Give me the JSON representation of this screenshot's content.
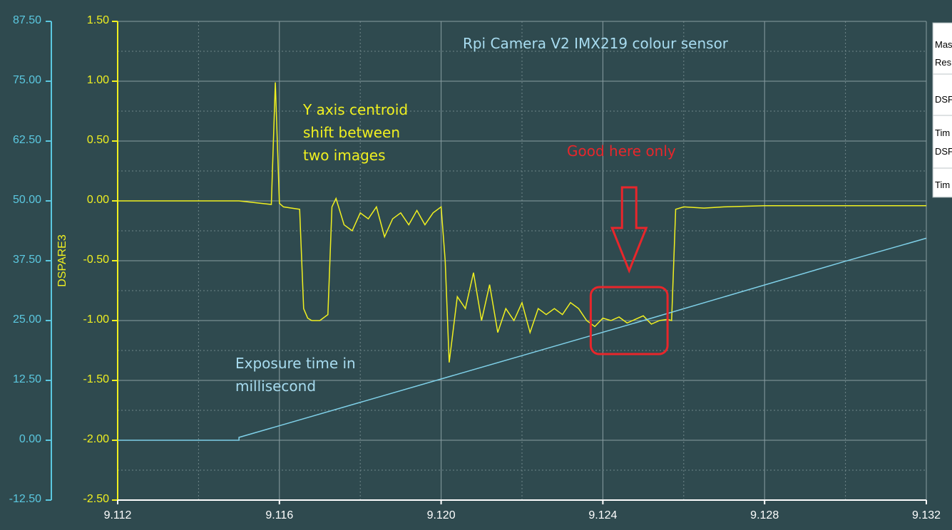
{
  "chart_data": {
    "type": "line",
    "title": "Rpi Camera V2 IMX219 colour sensor",
    "xlabel": "",
    "x_ticks": [
      "9.112",
      "9.116",
      "9.120",
      "9.124",
      "9.128",
      "9.132"
    ],
    "xlim": [
      9.112,
      9.132
    ],
    "y_left_outer": {
      "ticks": [
        "87.50",
        "75.00",
        "62.50",
        "50.00",
        "37.50",
        "25.00",
        "12.50",
        "0.00",
        "-12.50"
      ],
      "ylim": [
        -12.5,
        87.5
      ],
      "color": "#5bc8e0"
    },
    "y_left_inner": {
      "label": "DSPARE3",
      "ticks": [
        "1.50",
        "1.00",
        "0.50",
        "0.00",
        "-0.50",
        "-1.00",
        "-1.50",
        "-2.00",
        "-2.50"
      ],
      "ylim": [
        -2.5,
        1.5
      ],
      "color": "#f0f020"
    },
    "grid": true,
    "legend_position": "top-right",
    "legend_rows": [
      "Mas",
      "Res",
      "DSF",
      "Tim",
      "DSF",
      "Tim"
    ],
    "series": [
      {
        "axis": "y_left_inner",
        "color": "#f0f020",
        "x": [
          9.112,
          9.115,
          9.1158,
          9.1159,
          9.116,
          9.1161,
          9.1163,
          9.1165,
          9.1166,
          9.1167,
          9.1168,
          9.117,
          9.1172,
          9.1173,
          9.1174,
          9.1176,
          9.1178,
          9.118,
          9.1182,
          9.1184,
          9.1186,
          9.1188,
          9.119,
          9.1192,
          9.1194,
          9.1196,
          9.1198,
          9.12,
          9.1201,
          9.1202,
          9.1204,
          9.1206,
          9.1208,
          9.121,
          9.1212,
          9.1214,
          9.1216,
          9.1218,
          9.122,
          9.1222,
          9.1224,
          9.1226,
          9.1228,
          9.123,
          9.1232,
          9.1234,
          9.1236,
          9.1238,
          9.124,
          9.1242,
          9.1244,
          9.1246,
          9.1248,
          9.125,
          9.1252,
          9.1254,
          9.1256,
          9.1257,
          9.1258,
          9.126,
          9.1265,
          9.127,
          9.128,
          9.129,
          9.13,
          9.131,
          9.132
        ],
        "y": [
          0.0,
          0.0,
          -0.03,
          0.99,
          -0.02,
          -0.05,
          -0.06,
          -0.07,
          -0.9,
          -0.98,
          -1.0,
          -1.0,
          -0.95,
          -0.05,
          0.02,
          -0.2,
          -0.25,
          -0.1,
          -0.15,
          -0.05,
          -0.3,
          -0.15,
          -0.1,
          -0.2,
          -0.08,
          -0.2,
          -0.1,
          -0.05,
          -0.5,
          -1.35,
          -0.8,
          -0.9,
          -0.6,
          -1.0,
          -0.7,
          -1.1,
          -0.9,
          -1.0,
          -0.85,
          -1.1,
          -0.9,
          -0.95,
          -0.9,
          -0.95,
          -0.85,
          -0.9,
          -1.0,
          -1.05,
          -0.98,
          -1.0,
          -0.97,
          -1.02,
          -0.99,
          -0.96,
          -1.03,
          -1.0,
          -0.99,
          -1.0,
          -0.07,
          -0.05,
          -0.06,
          -0.05,
          -0.04,
          -0.04,
          -0.04,
          -0.04,
          -0.04
        ]
      },
      {
        "axis": "y_left_outer",
        "color": "#7fd0e8",
        "x": [
          9.112,
          9.115,
          9.115,
          9.12,
          9.125,
          9.13,
          9.132
        ],
        "y": [
          0.0,
          0.0,
          0.6,
          12.8,
          25.0,
          37.4,
          42.2
        ]
      }
    ],
    "annotations": [
      {
        "text": "Y axis centroid",
        "color": "#f0f020"
      },
      {
        "text": "shift between",
        "color": "#f0f020"
      },
      {
        "text": "two images",
        "color": "#f0f020"
      },
      {
        "text": "Good here only",
        "color": "#e8262b"
      },
      {
        "text": "Exposure time in",
        "color": "#a8dcf0"
      },
      {
        "text": "millisecond",
        "color": "#a8dcf0"
      }
    ],
    "highlight": {
      "x_range": [
        9.1237,
        9.1256
      ],
      "y_range": [
        -1.28,
        -0.72
      ],
      "color": "#e8262b"
    }
  }
}
